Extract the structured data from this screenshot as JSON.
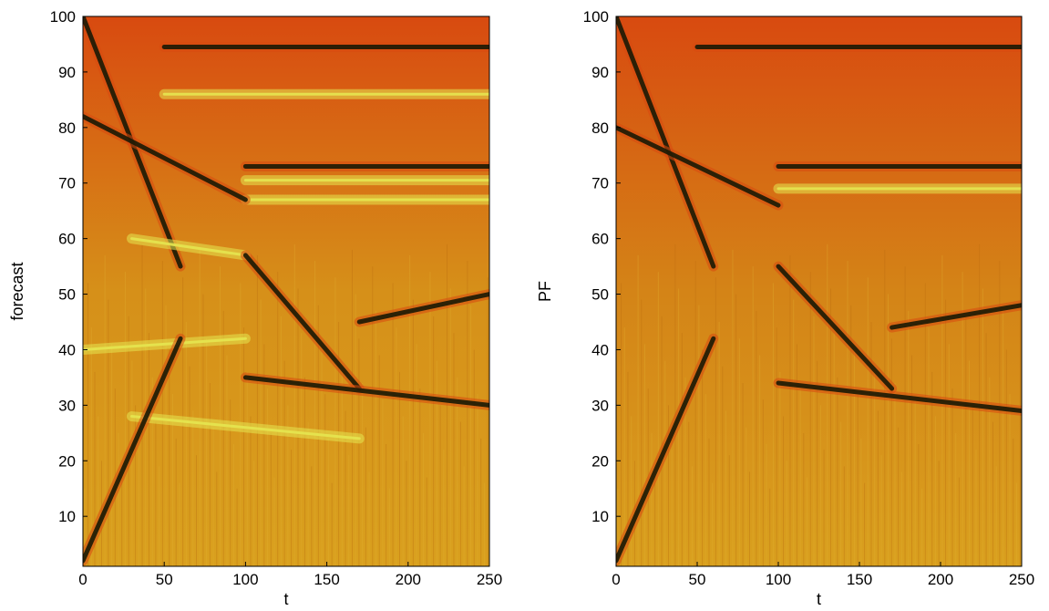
{
  "chart_data": [
    {
      "type": "heatmap",
      "title": "",
      "xlabel": "t",
      "ylabel": "forecast",
      "xlim": [
        0,
        250
      ],
      "ylim": [
        1,
        100
      ],
      "xticks": [
        0,
        50,
        100,
        150,
        200,
        250
      ],
      "yticks": [
        10,
        20,
        30,
        40,
        50,
        60,
        70,
        80,
        90,
        100
      ],
      "colormap": "hot",
      "colors": {
        "low": "#1a1a05",
        "mid": "#d84a10",
        "high": "#e6e650",
        "base": "#d69019"
      },
      "bands": [
        {
          "t": [
            0,
            60
          ],
          "y": [
            100,
            55
          ],
          "kind": "dark"
        },
        {
          "t": [
            50,
            250
          ],
          "y": [
            94.5,
            94.5
          ],
          "kind": "dark"
        },
        {
          "t": [
            50,
            250
          ],
          "y": [
            86,
            86
          ],
          "kind": "bright"
        },
        {
          "t": [
            100,
            250
          ],
          "y": [
            73,
            73
          ],
          "kind": "dark"
        },
        {
          "t": [
            100,
            250
          ],
          "y": [
            70.5,
            70.5
          ],
          "kind": "bright"
        },
        {
          "t": [
            100,
            250
          ],
          "y": [
            67,
            67
          ],
          "kind": "bright"
        },
        {
          "t": [
            0,
            100
          ],
          "y": [
            82,
            67
          ],
          "kind": "dark"
        },
        {
          "t": [
            30,
            100
          ],
          "y": [
            60,
            57
          ],
          "kind": "bright"
        },
        {
          "t": [
            100,
            170
          ],
          "y": [
            57,
            33
          ],
          "kind": "dark"
        },
        {
          "t": [
            170,
            250
          ],
          "y": [
            45,
            50
          ],
          "kind": "dark"
        },
        {
          "t": [
            0,
            100
          ],
          "y": [
            40,
            42
          ],
          "kind": "bright"
        },
        {
          "t": [
            100,
            250
          ],
          "y": [
            35,
            30
          ],
          "kind": "dark"
        },
        {
          "t": [
            30,
            170
          ],
          "y": [
            28,
            24
          ],
          "kind": "bright"
        },
        {
          "t": [
            0,
            60
          ],
          "y": [
            2,
            42
          ],
          "kind": "dark"
        }
      ]
    },
    {
      "type": "heatmap",
      "title": "",
      "xlabel": "t",
      "ylabel": "PF",
      "xlim": [
        0,
        250
      ],
      "ylim": [
        1,
        100
      ],
      "xticks": [
        0,
        50,
        100,
        150,
        200,
        250
      ],
      "yticks": [
        10,
        20,
        30,
        40,
        50,
        60,
        70,
        80,
        90,
        100
      ],
      "colormap": "hot",
      "colors": {
        "low": "#1a1a05",
        "mid": "#d84a10",
        "high": "#e6e650",
        "base": "#d48417"
      },
      "bands": [
        {
          "t": [
            0,
            60
          ],
          "y": [
            100,
            55
          ],
          "kind": "dark"
        },
        {
          "t": [
            50,
            250
          ],
          "y": [
            94.5,
            94.5
          ],
          "kind": "dark"
        },
        {
          "t": [
            100,
            250
          ],
          "y": [
            73,
            73
          ],
          "kind": "dark"
        },
        {
          "t": [
            100,
            250
          ],
          "y": [
            69,
            69
          ],
          "kind": "bright"
        },
        {
          "t": [
            0,
            100
          ],
          "y": [
            80,
            66
          ],
          "kind": "dark"
        },
        {
          "t": [
            100,
            170
          ],
          "y": [
            55,
            33
          ],
          "kind": "dark"
        },
        {
          "t": [
            170,
            250
          ],
          "y": [
            44,
            48
          ],
          "kind": "dark"
        },
        {
          "t": [
            100,
            250
          ],
          "y": [
            34,
            29
          ],
          "kind": "dark"
        },
        {
          "t": [
            0,
            60
          ],
          "y": [
            2,
            42
          ],
          "kind": "dark"
        }
      ]
    }
  ]
}
